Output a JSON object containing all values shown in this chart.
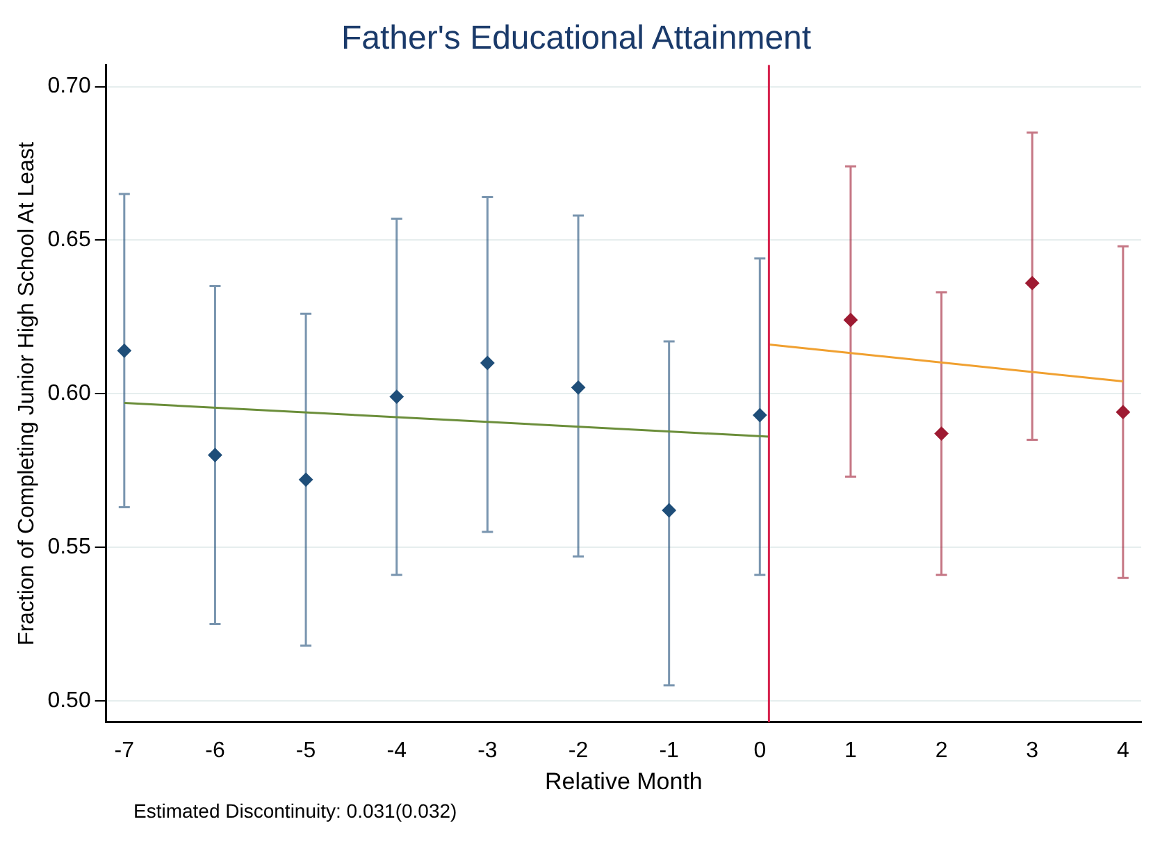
{
  "chart_data": {
    "type": "scatter",
    "title": "Father's Educational Attainment",
    "xlabel": "Relative Month",
    "ylabel": "Fraction of Completing Junior High School At Least",
    "annotations": [
      "Estimated Discontinuity: 0.031(0.032)"
    ],
    "series": [
      {
        "marker": "diamond",
        "color": "#1f4e79",
        "x": [
          -7,
          -6,
          -5,
          -4,
          -3,
          -2,
          -1,
          0
        ],
        "values": [
          0.614,
          0.58,
          0.572,
          0.599,
          0.61,
          0.602,
          0.562,
          0.593
        ],
        "errors": [
          [
            0.563,
            0.665
          ],
          [
            0.525,
            0.635
          ],
          [
            0.518,
            0.626
          ],
          [
            0.541,
            0.657
          ],
          [
            0.555,
            0.664
          ],
          [
            0.547,
            0.658
          ],
          [
            0.505,
            0.617
          ],
          [
            0.541,
            0.644
          ]
        ]
      },
      {
        "marker": "diamond",
        "color": "#9e1b32",
        "x": [
          1,
          2,
          3,
          4
        ],
        "values": [
          0.624,
          0.587,
          0.636,
          0.594
        ],
        "errors": [
          [
            0.573,
            0.674
          ],
          [
            0.541,
            0.633
          ],
          [
            0.585,
            0.685
          ],
          [
            0.54,
            0.648
          ]
        ]
      },
      {
        "type": "line",
        "color": "#6b8e3a",
        "x": [
          -7,
          0.1
        ],
        "values": [
          0.597,
          0.586
        ]
      },
      {
        "type": "line",
        "color": "#f0a030",
        "x": [
          0.1,
          4
        ],
        "values": [
          0.616,
          0.604
        ]
      }
    ],
    "ref_lines": [
      {
        "axis": "x",
        "value": 0.1,
        "color": "#d6204b"
      }
    ],
    "xlim": [
      -7.2,
      4.2
    ],
    "xticks": [
      -7,
      -6,
      -5,
      -4,
      -3,
      -2,
      -1,
      0,
      1,
      2,
      3,
      4
    ],
    "ylim": [
      0.493,
      0.707
    ],
    "yticks": [
      {
        "value": 0.5,
        "label": "0.50"
      },
      {
        "value": 0.55,
        "label": "0.55"
      },
      {
        "value": 0.6,
        "label": "0.60"
      },
      {
        "value": 0.65,
        "label": "0.65"
      },
      {
        "value": 0.7,
        "label": "0.70"
      }
    ],
    "grid": "y",
    "legend": false
  }
}
